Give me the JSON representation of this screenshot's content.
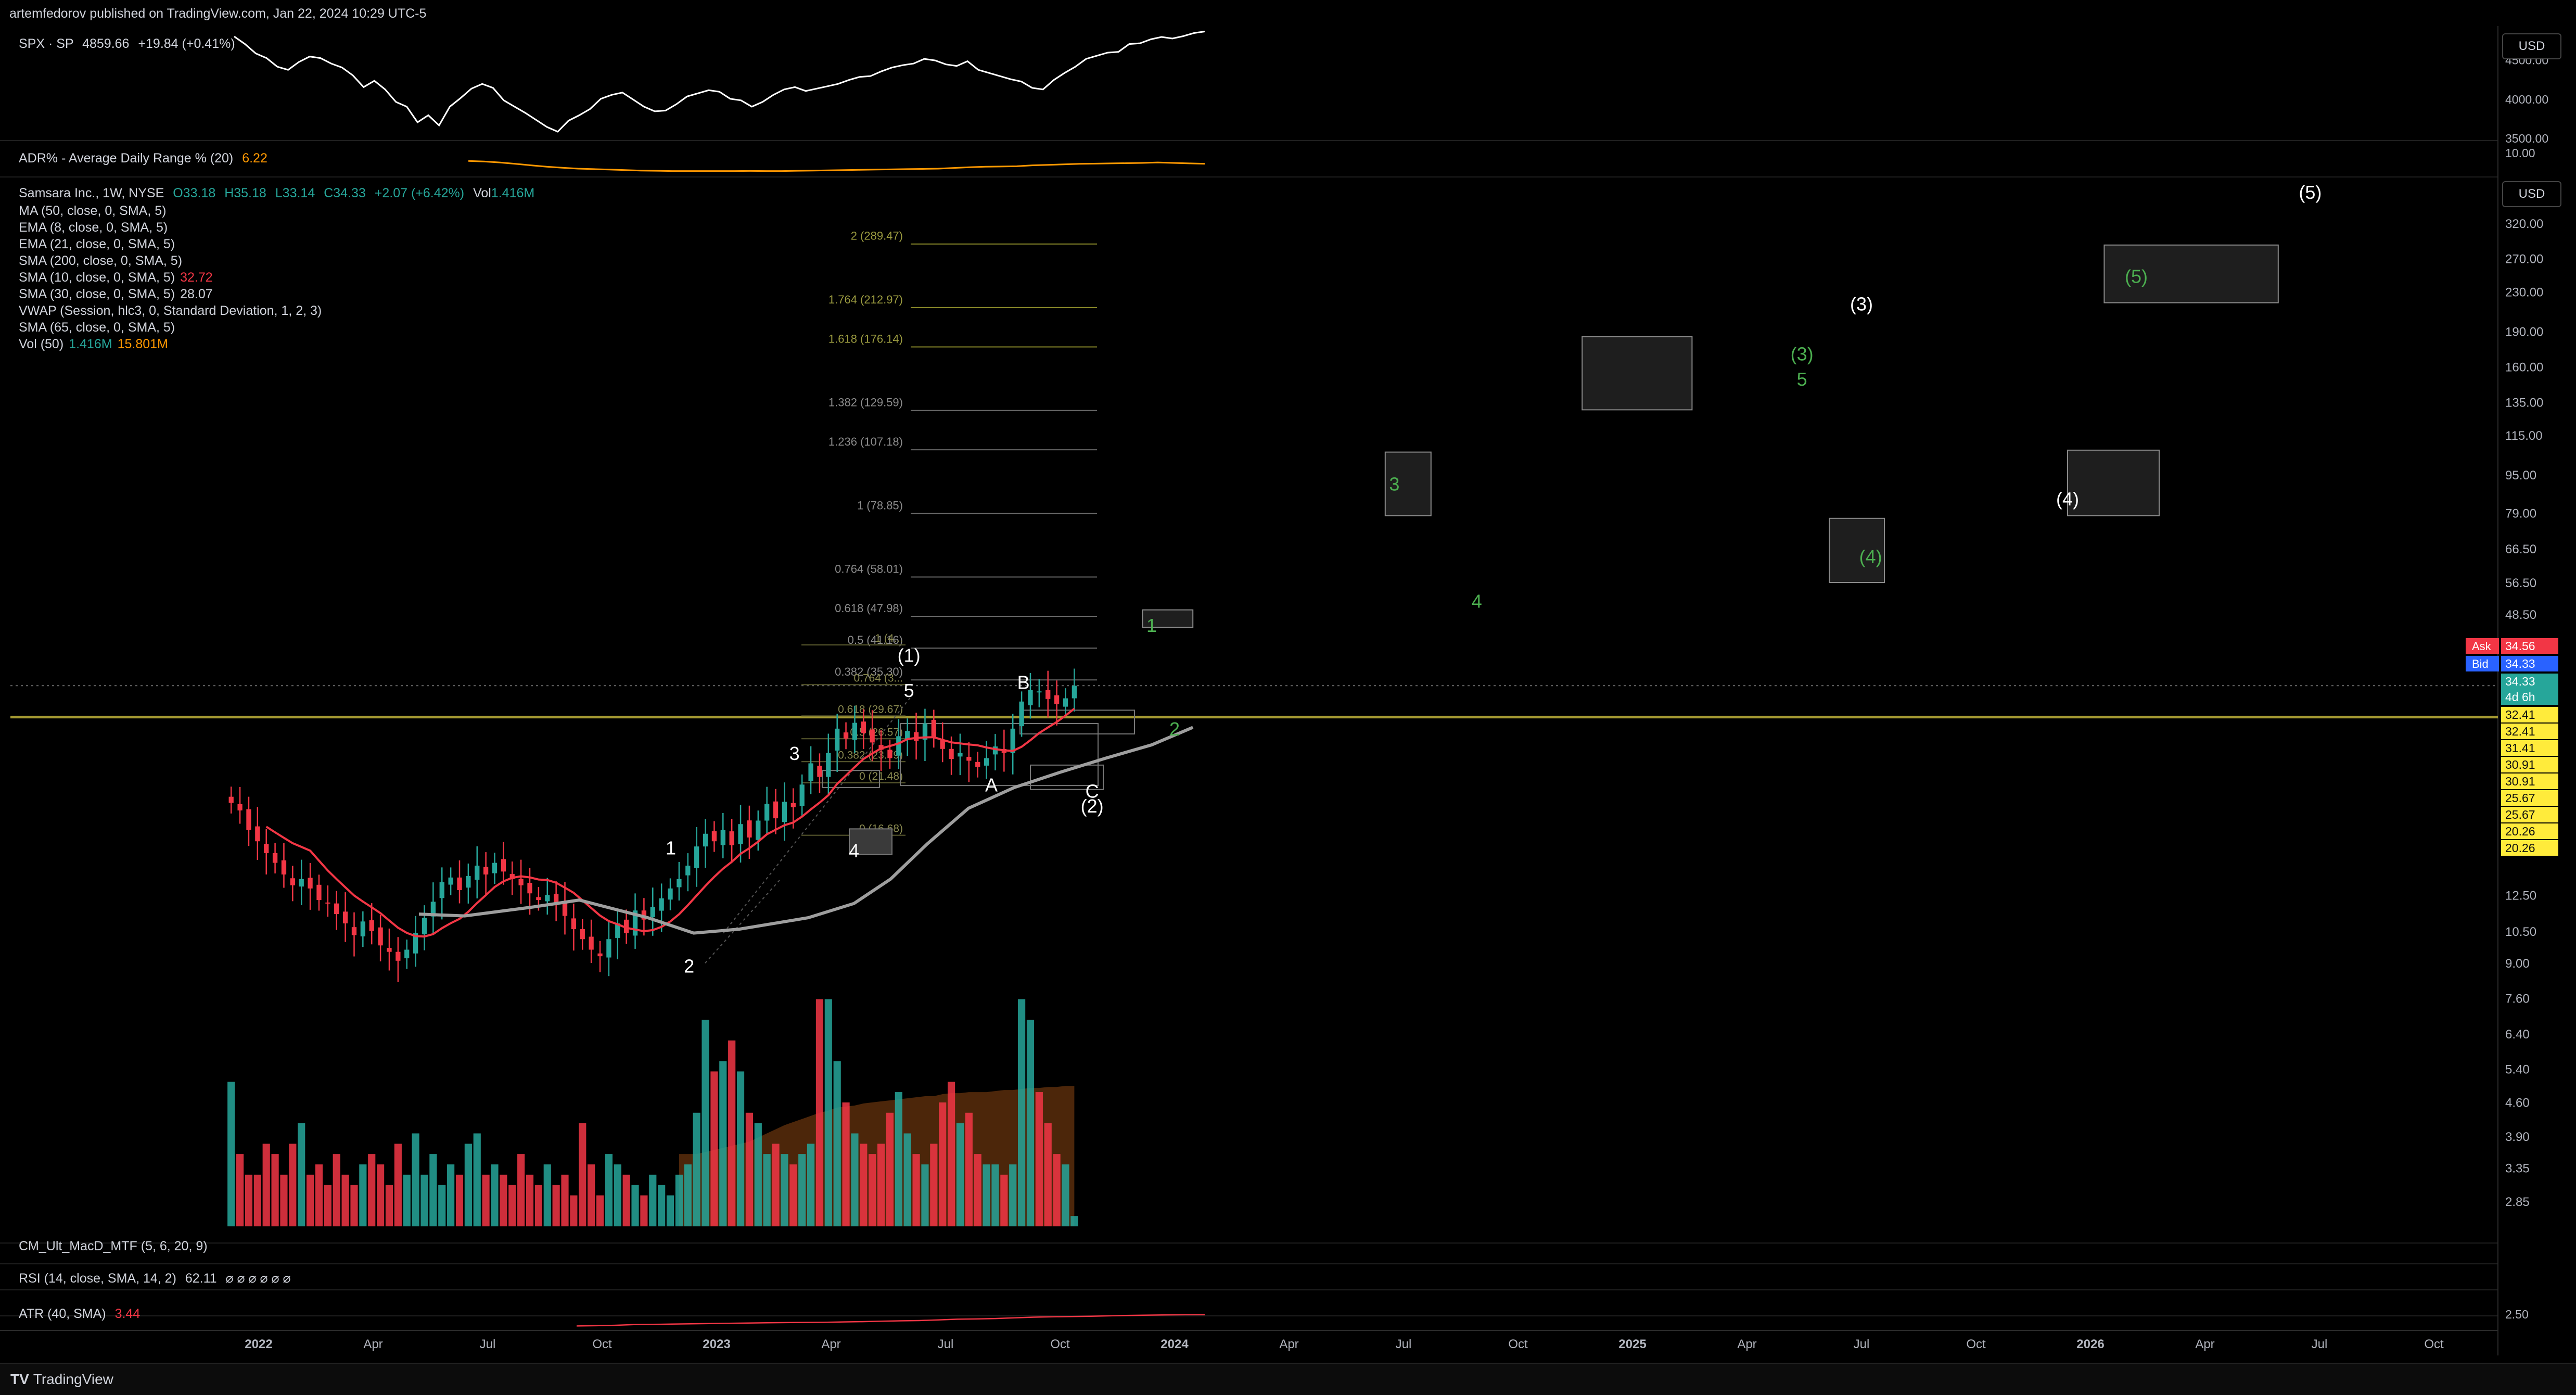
{
  "header": {
    "published": "artemfedorov published on TradingView.com, Jan 22, 2024 10:29 UTC-5"
  },
  "spx": {
    "title": "SPX · SP",
    "last": "4859.66",
    "change": "+19.84 (+0.41%)",
    "axis": [
      "4500.00",
      "4000.00",
      "3500.00"
    ],
    "series": [
      4796,
      4700,
      4580,
      4520,
      4410,
      4370,
      4470,
      4540,
      4520,
      4450,
      4400,
      4300,
      4150,
      4230,
      4120,
      3960,
      3900,
      3700,
      3790,
      3660,
      3900,
      4010,
      4130,
      4190,
      4140,
      3980,
      3900,
      3820,
      3730,
      3640,
      3580,
      3720,
      3790,
      3870,
      4000,
      4050,
      4080,
      3990,
      3900,
      3840,
      3850,
      3930,
      4030,
      4070,
      4110,
      4090,
      4000,
      3980,
      3900,
      3960,
      4050,
      4120,
      4150,
      4100,
      4130,
      4160,
      4190,
      4240,
      4280,
      4290,
      4350,
      4400,
      4430,
      4450,
      4510,
      4490,
      4440,
      4420,
      4480,
      4370,
      4330,
      4290,
      4250,
      4220,
      4140,
      4120,
      4240,
      4330,
      4410,
      4510,
      4550,
      4590,
      4600,
      4700,
      4710,
      4760,
      4790,
      4770,
      4800,
      4840,
      4860
    ]
  },
  "adr": {
    "title": "ADR% - Average Daily Range % (20)",
    "value": "6.22",
    "axis": [
      "10.00"
    ],
    "series": [
      6.8,
      6.7,
      6.5,
      6.2,
      5.9,
      5.6,
      5.4,
      5.2,
      5.1,
      5.0,
      4.9,
      4.8,
      4.75,
      4.7,
      4.7,
      4.7,
      4.7,
      4.7,
      4.72,
      4.7,
      4.7,
      4.75,
      4.8,
      4.85,
      4.9,
      4.95,
      5.0,
      5.05,
      5.1,
      5.15,
      5.2,
      5.35,
      5.5,
      5.6,
      5.65,
      5.7,
      5.9,
      6.0,
      6.1,
      6.2,
      6.25,
      6.3,
      6.35,
      6.4,
      6.5,
      6.4,
      6.3,
      6.22
    ]
  },
  "legend": {
    "main": {
      "name": "Samsara Inc., 1W, NYSE",
      "o": "O33.18",
      "h": "H35.18",
      "l": "L33.14",
      "c": "C34.33",
      "chg": "+2.07 (+6.42%)",
      "vol": "Vol",
      "vol_v": "1.416M"
    },
    "lines": [
      {
        "label": "MA (50, close, 0, SMA, 5)",
        "value": "",
        "color": "#d1d4dc"
      },
      {
        "label": "EMA (8, close, 0, SMA, 5)",
        "value": "",
        "color": "#d1d4dc"
      },
      {
        "label": "EMA (21, close, 0, SMA, 5)",
        "value": "",
        "color": "#d1d4dc"
      },
      {
        "label": "SMA (200, close, 0, SMA, 5)",
        "value": "",
        "color": "#d1d4dc"
      },
      {
        "label": "SMA (10, close, 0, SMA, 5)",
        "value": "32.72",
        "color": "#f23645"
      },
      {
        "label": "SMA (30, close, 0, SMA, 5)",
        "value": "28.07",
        "color": "#d1d4dc"
      },
      {
        "label": "VWAP (Session, hlc3, 0, Standard Deviation, 1, 2, 3)",
        "value": "",
        "color": "#d1d4dc"
      },
      {
        "label": "SMA (65, close, 0, SMA, 5)",
        "value": "",
        "color": "#d1d4dc"
      }
    ],
    "vol50": {
      "label": "Vol (50)",
      "v1": "1.416M",
      "v2": "15.801M"
    }
  },
  "currency": "USD",
  "bottom_panels": {
    "macd": "CM_Ult_MacD_MTF (5, 6, 20, 9)",
    "rsi": "RSI (14, close, SMA, 14, 2)",
    "rsi_value": "62.11",
    "rsi_symbols": "⌀ ⌀ ⌀ ⌀ ⌀ ⌀",
    "atr": "ATR (40, SMA)",
    "atr_value": "3.44",
    "atr_axis": "2.50"
  },
  "branding": "TradingView",
  "colors": {
    "up": "#26a69a",
    "down": "#f23645",
    "sma10": "#f23645",
    "sma30": "#9e9e9e",
    "fib": "#8a8a2a",
    "hline": "#a59a32",
    "wave_green": "#4caf50",
    "vol_area": "#8b4513"
  },
  "chart_data": {
    "type": "candlestick",
    "title": "Samsara Inc., 1W, NYSE",
    "scale": "log",
    "ylim": [
      2.5,
      400
    ],
    "y_ticks": [
      "320.00",
      "270.00",
      "230.00",
      "190.00",
      "160.00",
      "135.00",
      "115.00",
      "95.00",
      "79.00",
      "66.50",
      "56.50",
      "48.50",
      "12.50",
      "10.50",
      "9.00",
      "7.60",
      "6.40",
      "5.40",
      "4.60",
      "3.90",
      "3.35",
      "2.85"
    ],
    "x_ticks": [
      "2022",
      "Apr",
      "Jul",
      "Oct",
      "2023",
      "Apr",
      "Jul",
      "Oct",
      "2024",
      "Apr",
      "Jul",
      "Oct",
      "2025",
      "Apr",
      "Jul",
      "Oct",
      "2026",
      "Apr",
      "Jul",
      "Oct"
    ],
    "x_tick_dates": [
      2022.0,
      2022.25,
      2022.5,
      2022.75,
      2023.0,
      2023.25,
      2023.5,
      2023.75,
      2024.0,
      2024.25,
      2024.5,
      2024.75,
      2025.0,
      2025.25,
      2025.5,
      2025.75,
      2026.0,
      2026.25,
      2026.5,
      2026.75
    ],
    "start": 2021.94,
    "week": 0.019178,
    "closes": [
      19.5,
      18.8,
      17.1,
      16.2,
      15.3,
      14.6,
      13.8,
      13.1,
      13.5,
      12.9,
      12.2,
      12.0,
      11.4,
      10.9,
      10.3,
      11.0,
      10.5,
      9.8,
      9.5,
      9.1,
      9.6,
      10.4,
      11.2,
      12.1,
      13.3,
      13.6,
      12.8,
      13.7,
      14.4,
      13.8,
      14.6,
      14.0,
      13.5,
      13.1,
      12.6,
      12.2,
      12.5,
      11.9,
      11.3,
      10.6,
      10.1,
      9.6,
      9.3,
      10.1,
      10.9,
      10.4,
      11.6,
      11.1,
      11.8,
      12.3,
      12.9,
      13.5,
      14.4,
      15.8,
      16.8,
      16.2,
      17.1,
      15.9,
      17.6,
      16.5,
      17.9,
      19.4,
      18.1,
      19.6,
      19.1,
      21.3,
      23.6,
      22.1,
      24.8,
      27.9,
      26.6,
      28.7,
      27.3,
      26.1,
      25.2,
      24.2,
      26.9,
      27.6,
      26.3,
      28.6,
      26.8,
      25.3,
      24.1,
      24.8,
      23.9,
      23.2,
      24.2,
      25.6,
      24.8,
      27.9,
      31.8,
      33.6,
      33.4,
      32.2,
      31.4,
      32.3,
      34.33
    ],
    "volume": [
      1.4,
      0.7,
      0.5,
      0.5,
      0.8,
      0.7,
      0.5,
      0.8,
      1.0,
      0.5,
      0.6,
      0.4,
      0.7,
      0.5,
      0.4,
      0.6,
      0.7,
      0.6,
      0.4,
      0.8,
      0.5,
      0.9,
      0.5,
      0.7,
      0.4,
      0.6,
      0.5,
      0.8,
      0.9,
      0.5,
      0.6,
      0.5,
      0.4,
      0.7,
      0.5,
      0.4,
      0.6,
      0.4,
      0.5,
      0.3,
      1.0,
      0.6,
      0.3,
      0.7,
      0.6,
      0.5,
      0.4,
      0.3,
      0.5,
      0.4,
      0.3,
      0.5,
      0.6,
      1.1,
      2.0,
      1.5,
      1.6,
      1.8,
      1.5,
      1.1,
      1.0,
      0.7,
      0.8,
      0.7,
      0.6,
      0.7,
      0.8,
      2.2,
      2.2,
      1.6,
      1.2,
      0.9,
      0.8,
      0.7,
      0.8,
      1.1,
      1.3,
      0.9,
      0.7,
      0.6,
      0.8,
      1.2,
      1.4,
      1.0,
      1.1,
      0.7,
      0.6,
      0.6,
      0.5,
      0.6,
      2.2,
      2.0,
      1.3,
      1.0,
      0.7,
      0.6,
      0.1
    ],
    "volume_ylim": [
      0,
      2.5
    ],
    "vol_avg": [
      0.7,
      0.7,
      0.7,
      0.72,
      0.74,
      0.76,
      0.78,
      0.8,
      0.82,
      0.86,
      0.9,
      0.94,
      0.98,
      1.01,
      1.04,
      1.07,
      1.1,
      1.12,
      1.15,
      1.16,
      1.17,
      1.19,
      1.2,
      1.21,
      1.22,
      1.23,
      1.24,
      1.25,
      1.26,
      1.26,
      1.28,
      1.29,
      1.29,
      1.3,
      1.3,
      1.3,
      1.31,
      1.32,
      1.32,
      1.33,
      1.34,
      1.34,
      1.35,
      1.35,
      1.36,
      1.36
    ],
    "sma30_path": [
      [
        2022.35,
        11.4
      ],
      [
        2022.45,
        11.3
      ],
      [
        2022.6,
        11.8
      ],
      [
        2022.7,
        12.2
      ],
      [
        2022.85,
        11.2
      ],
      [
        2022.95,
        10.4
      ],
      [
        2023.05,
        10.6
      ],
      [
        2023.2,
        11.2
      ],
      [
        2023.3,
        12.0
      ],
      [
        2023.38,
        13.5
      ],
      [
        2023.46,
        16.0
      ],
      [
        2023.55,
        19.0
      ],
      [
        2023.65,
        21.0
      ],
      [
        2023.75,
        22.6
      ],
      [
        2023.85,
        24.2
      ],
      [
        2023.95,
        25.8
      ],
      [
        2024.04,
        28.07
      ]
    ],
    "fib_levels": [
      {
        "label": "2 (289.47)",
        "value": 289.47
      },
      {
        "label": "1.764 (212.97)",
        "value": 212.97
      },
      {
        "label": "1.618 (176.14)",
        "value": 176.14
      },
      {
        "label": "1.382 (129.59)",
        "value": 129.59
      },
      {
        "label": "1.236 (107.18)",
        "value": 107.18
      },
      {
        "label": "1 (78.85)",
        "value": 78.85
      },
      {
        "label": "0.764 (58.01)",
        "value": 58.01
      },
      {
        "label": "0.618 (47.98)",
        "value": 47.98
      },
      {
        "label": "0.5 (41.16)",
        "value": 41.16
      },
      {
        "label": "0.382 (35.30)",
        "value": 35.3
      }
    ],
    "fib_levels_small": [
      {
        "label": "1 (4...",
        "value": 41.8
      },
      {
        "label": "0.764 (3...",
        "value": 34.5
      },
      {
        "label": "0.618 (29.67)",
        "value": 29.67
      },
      {
        "label": "0.5 (26.57)",
        "value": 26.57
      },
      {
        "label": "0.382 (23.79)",
        "value": 23.79
      },
      {
        "label": "0 (21.48)",
        "value": 21.48
      },
      {
        "label": "0 (16.68)",
        "value": 16.68
      }
    ],
    "hline": 29.5,
    "dotted_line": 34.33,
    "waves_white": [
      {
        "label": "1",
        "t": 2022.9,
        "v": 15.2
      },
      {
        "label": "2",
        "t": 2022.94,
        "v": 8.6
      },
      {
        "label": "3",
        "t": 2023.17,
        "v": 24.0
      },
      {
        "label": "4",
        "t": 2023.3,
        "v": 15.0
      },
      {
        "label": "5",
        "t": 2023.42,
        "v": 32.5
      },
      {
        "label": "(1)",
        "t": 2023.42,
        "v": 38.5
      },
      {
        "label": "B",
        "t": 2023.67,
        "v": 33.8
      },
      {
        "label": "A",
        "t": 2023.6,
        "v": 20.6
      },
      {
        "label": "C",
        "t": 2023.82,
        "v": 20.0
      },
      {
        "label": "(2)",
        "t": 2023.82,
        "v": 18.6
      },
      {
        "label": "(3)",
        "t": 2025.5,
        "v": 210
      },
      {
        "label": "(4)",
        "t": 2025.95,
        "v": 82
      },
      {
        "label": "(5)",
        "t": 2026.48,
        "v": 360
      }
    ],
    "waves_green": [
      {
        "label": "1",
        "t": 2023.95,
        "v": 44.5
      },
      {
        "label": "2",
        "t": 2024.0,
        "v": 27.0
      },
      {
        "label": "3",
        "t": 2024.48,
        "v": 88
      },
      {
        "label": "4",
        "t": 2024.66,
        "v": 50
      },
      {
        "label": "5",
        "t": 2025.37,
        "v": 146
      },
      {
        "label": "(3)",
        "t": 2025.37,
        "v": 165
      },
      {
        "label": "(4)",
        "t": 2025.52,
        "v": 62
      },
      {
        "label": "(5)",
        "t": 2026.1,
        "v": 240
      }
    ],
    "target_boxes": [
      {
        "t1": 2023.93,
        "t2": 2024.04,
        "v1": 45.5,
        "v2": 49.5
      },
      {
        "t1": 2024.46,
        "t2": 2024.56,
        "v1": 78.0,
        "v2": 106
      },
      {
        "t1": 2024.89,
        "t2": 2025.13,
        "v1": 130,
        "v2": 185
      },
      {
        "t1": 2025.43,
        "t2": 2025.55,
        "v1": 56.5,
        "v2": 77
      },
      {
        "t1": 2025.95,
        "t2": 2026.15,
        "v1": 78.0,
        "v2": 107
      },
      {
        "t1": 2026.03,
        "t2": 2026.41,
        "v1": 218,
        "v2": 288
      }
    ],
    "price_labels": {
      "ask": {
        "label": "Ask",
        "value": "34.56"
      },
      "bid": {
        "label": "Bid",
        "value": "34.33"
      },
      "last": "34.33",
      "countdown": "4d 6h",
      "yellow": [
        "32.41",
        "32.41",
        "31.41",
        "30.91",
        "30.91",
        "25.67",
        "25.67",
        "20.26",
        "20.26"
      ]
    },
    "atr_series": [
      2.6,
      2.62,
      2.65,
      2.7,
      2.72,
      2.74,
      2.76,
      2.78,
      2.8,
      2.82,
      2.84,
      2.85,
      2.86,
      2.87,
      2.9,
      2.92,
      2.95,
      2.98,
      3.0,
      3.05,
      3.1,
      3.12,
      3.15,
      3.2,
      3.25,
      3.28,
      3.3,
      3.32,
      3.35,
      3.38,
      3.4,
      3.42,
      3.43,
      3.44
    ]
  }
}
